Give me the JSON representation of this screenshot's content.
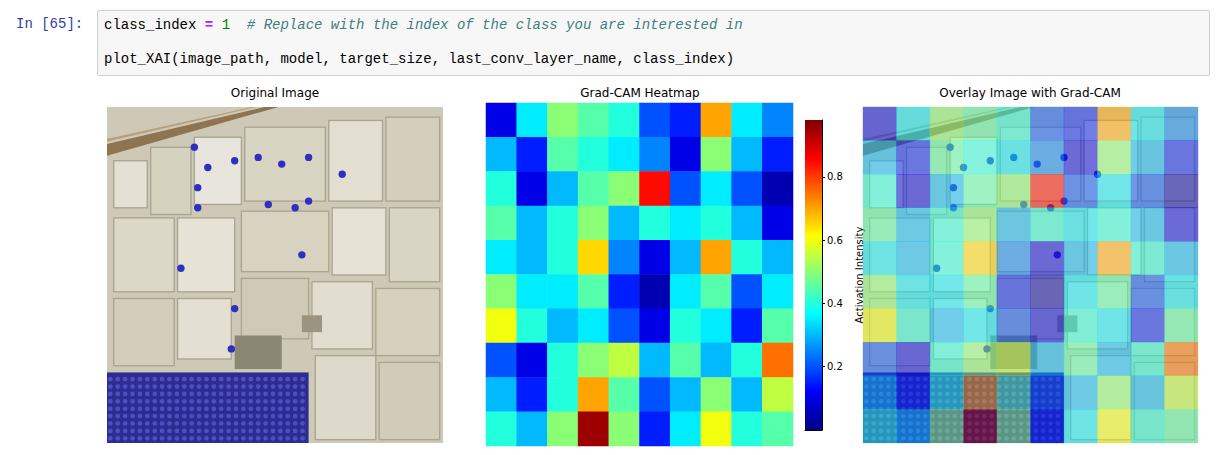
{
  "notebook": {
    "prompt": "In [65]:",
    "code": [
      "class_index = 1  # Replace with the index of the class you are interested in",
      "",
      "plot_XAI(image_path, model, target_size, last_conv_layer_name, class_index)"
    ]
  },
  "panels": [
    {
      "title": "Original Image"
    },
    {
      "title": "Grad-CAM Heatmap"
    },
    {
      "title": "Overlay Image with Grad-CAM"
    }
  ],
  "chart_data": {
    "type": "heatmap",
    "tick_labels": false,
    "cells": [
      [
        0.1,
        0.35,
        0.5,
        0.45,
        0.4,
        0.2,
        0.15,
        0.7,
        0.35,
        0.25
      ],
      [
        0.3,
        0.15,
        0.45,
        0.4,
        0.35,
        0.25,
        0.1,
        0.5,
        0.3,
        0.15
      ],
      [
        0.4,
        0.1,
        0.3,
        0.45,
        0.5,
        0.85,
        0.2,
        0.35,
        0.2,
        0.05
      ],
      [
        0.45,
        0.3,
        0.4,
        0.5,
        0.3,
        0.4,
        0.35,
        0.4,
        0.3,
        0.1
      ],
      [
        0.35,
        0.3,
        0.4,
        0.65,
        0.25,
        0.1,
        0.3,
        0.7,
        0.4,
        0.3
      ],
      [
        0.5,
        0.35,
        0.35,
        0.45,
        0.15,
        0.05,
        0.35,
        0.45,
        0.2,
        0.35
      ],
      [
        0.6,
        0.4,
        0.3,
        0.35,
        0.2,
        0.1,
        0.4,
        0.35,
        0.15,
        0.45
      ],
      [
        0.2,
        0.1,
        0.4,
        0.5,
        0.55,
        0.3,
        0.45,
        0.3,
        0.4,
        0.75
      ],
      [
        0.3,
        0.15,
        0.4,
        0.7,
        0.45,
        0.2,
        0.3,
        0.5,
        0.3,
        0.55
      ],
      [
        0.4,
        0.3,
        0.5,
        0.95,
        0.5,
        0.15,
        0.35,
        0.6,
        0.4,
        0.45
      ]
    ],
    "colorbar": {
      "label": "Activation Intensity",
      "range": [
        0,
        0.98
      ],
      "ticks": [
        0.2,
        0.4,
        0.6,
        0.8
      ]
    }
  }
}
